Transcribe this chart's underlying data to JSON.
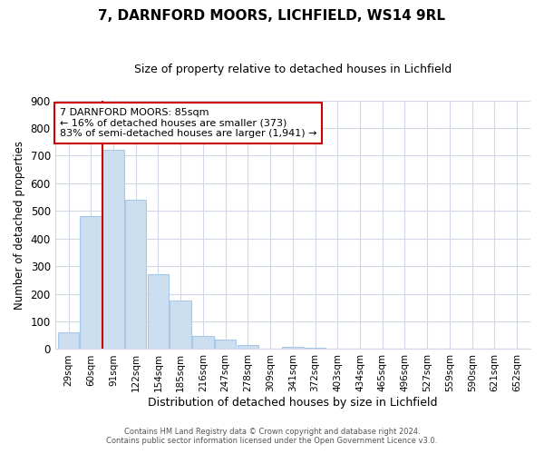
{
  "title": "7, DARNFORD MOORS, LICHFIELD, WS14 9RL",
  "subtitle": "Size of property relative to detached houses in Lichfield",
  "xlabel": "Distribution of detached houses by size in Lichfield",
  "ylabel": "Number of detached properties",
  "bar_labels": [
    "29sqm",
    "60sqm",
    "91sqm",
    "122sqm",
    "154sqm",
    "185sqm",
    "216sqm",
    "247sqm",
    "278sqm",
    "309sqm",
    "341sqm",
    "372sqm",
    "403sqm",
    "434sqm",
    "465sqm",
    "496sqm",
    "527sqm",
    "559sqm",
    "590sqm",
    "621sqm",
    "652sqm"
  ],
  "bar_values": [
    60,
    480,
    720,
    540,
    270,
    175,
    48,
    35,
    14,
    0,
    8,
    5,
    0,
    0,
    0,
    0,
    0,
    0,
    0,
    0,
    0
  ],
  "bar_color": "#ccdff0",
  "bar_edge_color": "#a8c8e8",
  "redline_index": 2,
  "redline_color": "#cc0000",
  "ylim": [
    0,
    900
  ],
  "yticks": [
    0,
    100,
    200,
    300,
    400,
    500,
    600,
    700,
    800,
    900
  ],
  "annotation_text": "7 DARNFORD MOORS: 85sqm\n← 16% of detached houses are smaller (373)\n83% of semi-detached houses are larger (1,941) →",
  "annotation_box_color": "#ffffff",
  "annotation_box_edge": "#cc0000",
  "footer_line1": "Contains HM Land Registry data © Crown copyright and database right 2024.",
  "footer_line2": "Contains public sector information licensed under the Open Government Licence v3.0.",
  "background_color": "#ffffff",
  "grid_color": "#d0d8e8",
  "title_fontsize": 11,
  "subtitle_fontsize": 9
}
